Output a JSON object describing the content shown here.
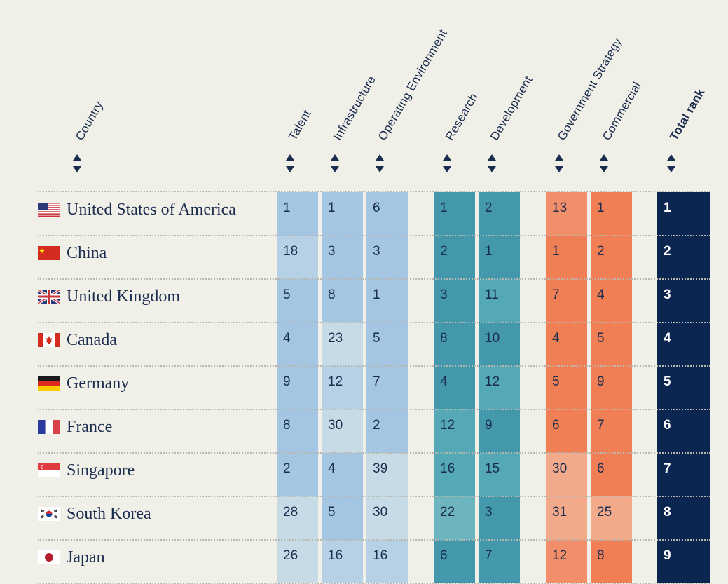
{
  "headers": {
    "country": "Country",
    "talent": "Talent",
    "infrastructure": "Infrastructure",
    "operating_environment": "Operating Environment",
    "research": "Research",
    "development": "Development",
    "government_strategy": "Government Strategy",
    "commercial": "Commercial",
    "total_rank": "Total rank"
  },
  "colors": {
    "background": "#f0efe8",
    "text": "#1b2d4f",
    "blue_dark": "#a4c6e2",
    "blue_mid": "#b6d1e6",
    "blue_light": "#c7dbe7",
    "teal_dark": "#4398ab",
    "teal_mid": "#55a8b6",
    "teal_light": "#6cb5bf",
    "orange_dark": "#f07f56",
    "orange_mid": "#f28f6a",
    "orange_light": "#f2aa8a",
    "total": "#0b2650"
  },
  "rows": [
    {
      "flag": "us-flag-icon",
      "country": "United States of America",
      "talent": "1",
      "infrastructure": "1",
      "operating_environment": "6",
      "research": "1",
      "development": "2",
      "government_strategy": "13",
      "commercial": "1",
      "total": "1"
    },
    {
      "flag": "cn-flag-icon",
      "country": "China",
      "talent": "18",
      "infrastructure": "3",
      "operating_environment": "3",
      "research": "2",
      "development": "1",
      "government_strategy": "1",
      "commercial": "2",
      "total": "2"
    },
    {
      "flag": "uk-flag-icon",
      "country": "United Kingdom",
      "talent": "5",
      "infrastructure": "8",
      "operating_environment": "1",
      "research": "3",
      "development": "11",
      "government_strategy": "7",
      "commercial": "4",
      "total": "3"
    },
    {
      "flag": "ca-flag-icon",
      "country": "Canada",
      "talent": "4",
      "infrastructure": "23",
      "operating_environment": "5",
      "research": "8",
      "development": "10",
      "government_strategy": "4",
      "commercial": "5",
      "total": "4"
    },
    {
      "flag": "de-flag-icon",
      "country": "Germany",
      "talent": "9",
      "infrastructure": "12",
      "operating_environment": "7",
      "research": "4",
      "development": "12",
      "government_strategy": "5",
      "commercial": "9",
      "total": "5"
    },
    {
      "flag": "fr-flag-icon",
      "country": "France",
      "talent": "8",
      "infrastructure": "30",
      "operating_environment": "2",
      "research": "12",
      "development": "9",
      "government_strategy": "6",
      "commercial": "7",
      "total": "6"
    },
    {
      "flag": "sg-flag-icon",
      "country": "Singapore",
      "talent": "2",
      "infrastructure": "4",
      "operating_environment": "39",
      "research": "16",
      "development": "15",
      "government_strategy": "30",
      "commercial": "6",
      "total": "7"
    },
    {
      "flag": "kr-flag-icon",
      "country": "South Korea",
      "talent": "28",
      "infrastructure": "5",
      "operating_environment": "30",
      "research": "22",
      "development": "3",
      "government_strategy": "31",
      "commercial": "25",
      "total": "8"
    },
    {
      "flag": "jp-flag-icon",
      "country": "Japan",
      "talent": "26",
      "infrastructure": "16",
      "operating_environment": "16",
      "research": "6",
      "development": "7",
      "government_strategy": "12",
      "commercial": "8",
      "total": "9"
    }
  ]
}
